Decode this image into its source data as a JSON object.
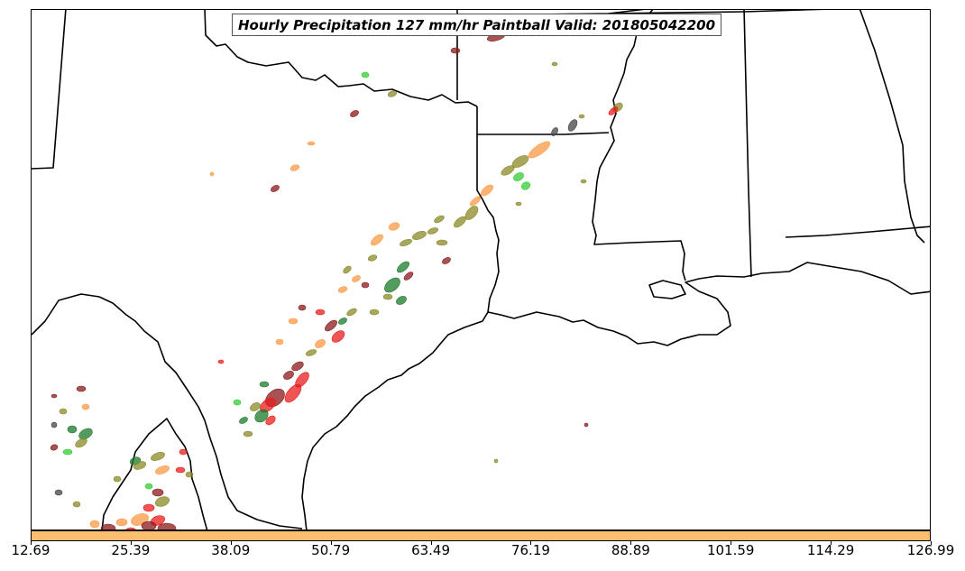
{
  "title": "Hourly Precipitation 127 mm/hr Paintball Valid: 201805042200",
  "colorbar": {
    "color": "#fdbf6f",
    "ticks": [
      "12.69",
      "25.39",
      "38.09",
      "50.79",
      "63.49",
      "76.19",
      "88.89",
      "101.59",
      "114.29",
      "126.99"
    ]
  },
  "colors": {
    "outline": "#000000",
    "paint_olive": "#8a8a28",
    "paint_orange": "#fd9a45",
    "paint_green": "#33cc33",
    "paint_darkgreen": "#1b7a2a",
    "paint_red": "#e81c1c",
    "paint_darkred": "#8b1a1a",
    "paint_gray": "#444444"
  }
}
